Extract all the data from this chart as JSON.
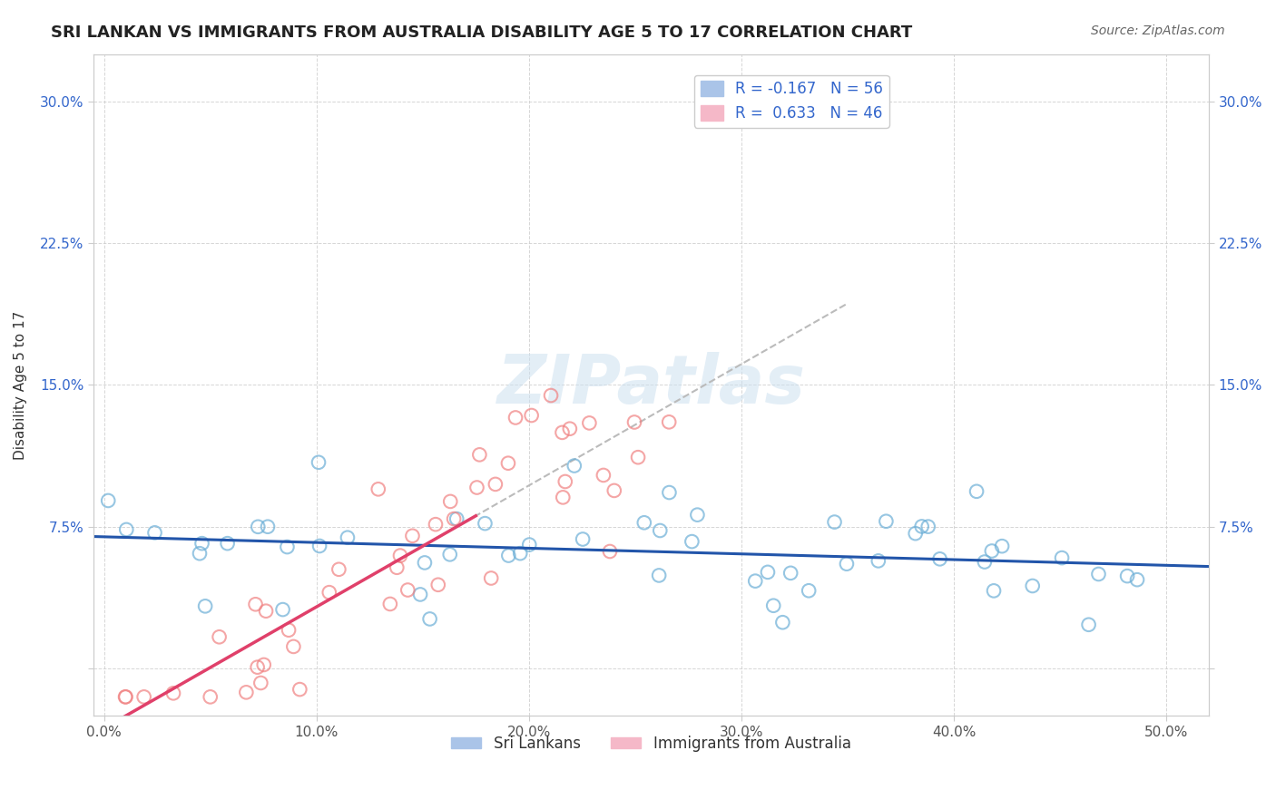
{
  "title": "SRI LANKAN VS IMMIGRANTS FROM AUSTRALIA DISABILITY AGE 5 TO 17 CORRELATION CHART",
  "source": "Source: ZipAtlas.com",
  "ylabel": "Disability Age 5 to 17",
  "x_ticks": [
    0.0,
    0.1,
    0.2,
    0.3,
    0.4,
    0.5
  ],
  "x_tick_labels": [
    "0.0%",
    "10.0%",
    "20.0%",
    "30.0%",
    "40.0%",
    "50.0%"
  ],
  "y_ticks": [
    0.0,
    0.075,
    0.15,
    0.225,
    0.3
  ],
  "y_tick_labels_left": [
    "",
    "7.5%",
    "15.0%",
    "22.5%",
    "30.0%"
  ],
  "y_tick_labels_right": [
    "",
    "7.5%",
    "15.0%",
    "22.5%",
    "30.0%"
  ],
  "xlim": [
    -0.005,
    0.52
  ],
  "ylim": [
    -0.025,
    0.325
  ],
  "watermark": "ZIPatlas",
  "sri_lankans_edge_color": "#6baed6",
  "immigrants_edge_color": "#f08080",
  "sri_lankans_trend_color": "#2255aa",
  "immigrants_trend_color": "#e0406a",
  "immigrants_trend_dashed_color": "#bbbbbb",
  "R_sri": -0.167,
  "R_imm": 0.633,
  "N_sri": 56,
  "N_imm": 46,
  "legend_patch_sri_color": "#aac4e8",
  "legend_patch_imm_color": "#f5b8c8",
  "legend_text_color": "#3366cc",
  "bottom_legend_sri": "Sri Lankans",
  "bottom_legend_imm": "Immigrants from Australia",
  "title_fontsize": 13,
  "source_fontsize": 10,
  "tick_fontsize": 11,
  "ylabel_fontsize": 11,
  "legend_fontsize": 12,
  "grid_color": "#cccccc",
  "tick_color_y": "#3366cc",
  "tick_color_x": "#555555"
}
